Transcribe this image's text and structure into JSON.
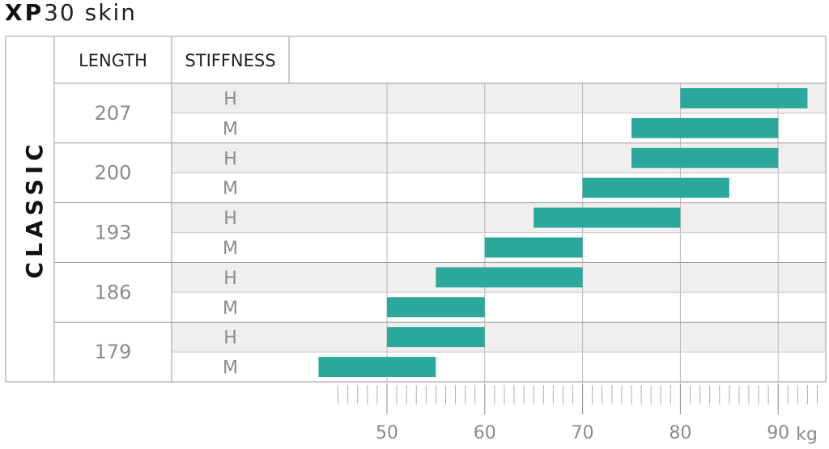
{
  "title": {
    "bold": "XP",
    "light": "30 skin"
  },
  "chart_data": {
    "type": "bar",
    "orientation": "horizontal-range",
    "side_label": "CLASSIC",
    "column_headers": [
      "LENGTH",
      "STIFFNESS"
    ],
    "unit": "kg",
    "x_ticks": [
      50,
      60,
      70,
      80,
      90
    ],
    "xlim": [
      45,
      95
    ],
    "grid": true,
    "groups": [
      {
        "length": "207",
        "rows": [
          {
            "stiffness": "H",
            "start": 80,
            "end": 93
          },
          {
            "stiffness": "M",
            "start": 75,
            "end": 90
          }
        ]
      },
      {
        "length": "200",
        "rows": [
          {
            "stiffness": "H",
            "start": 75,
            "end": 90
          },
          {
            "stiffness": "M",
            "start": 70,
            "end": 85
          }
        ]
      },
      {
        "length": "193",
        "rows": [
          {
            "stiffness": "H",
            "start": 65,
            "end": 80
          },
          {
            "stiffness": "M",
            "start": 60,
            "end": 70
          }
        ]
      },
      {
        "length": "186",
        "rows": [
          {
            "stiffness": "H",
            "start": 55,
            "end": 70
          },
          {
            "stiffness": "M",
            "start": 50,
            "end": 60
          }
        ]
      },
      {
        "length": "179",
        "rows": [
          {
            "stiffness": "H",
            "start": 50,
            "end": 60
          },
          {
            "stiffness": "M",
            "start": 43,
            "end": 55
          }
        ]
      }
    ],
    "colors": {
      "bar": "#2ba89c",
      "grid": "#b8b8b8",
      "shade": "#f0efee",
      "border": "#9a9a9a"
    }
  }
}
